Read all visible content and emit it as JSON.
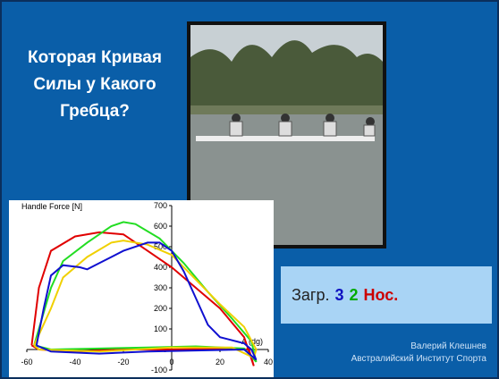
{
  "slide": {
    "title_lines": [
      "Которая Кривая",
      "Силы у Какого",
      "Гребца?"
    ],
    "answer": {
      "label": "Загр.",
      "sequence": [
        "3",
        "2",
        "Нос."
      ]
    },
    "author": "Валерий Клешнев",
    "organization": "Австралийский Институт Спорта"
  },
  "chart_data": {
    "type": "line",
    "y_label": "Handle Force [N]",
    "x_label": "A (dg)",
    "xlim": [
      -60,
      40
    ],
    "ylim": [
      -100,
      700
    ],
    "xticks": [
      -60,
      -40,
      -20,
      0,
      20,
      40
    ],
    "yticks": [
      -100,
      0,
      100,
      200,
      300,
      400,
      500,
      600,
      700
    ],
    "series": [
      {
        "color": "#e00000",
        "x": [
          -58,
          -55,
          -50,
          -40,
          -30,
          -20,
          -10,
          0,
          10,
          20,
          30,
          34,
          32,
          20,
          0,
          -20,
          -40,
          -55,
          -58
        ],
        "values": [
          20,
          300,
          480,
          550,
          570,
          560,
          480,
          400,
          300,
          200,
          60,
          -80,
          0,
          5,
          0,
          0,
          -10,
          0,
          20
        ]
      },
      {
        "color": "#22dd22",
        "x": [
          -57,
          -50,
          -45,
          -35,
          -25,
          -20,
          -15,
          -5,
          5,
          15,
          25,
          33,
          35,
          30,
          10,
          -10,
          -30,
          -50,
          -57
        ],
        "values": [
          20,
          300,
          430,
          520,
          600,
          620,
          610,
          540,
          420,
          280,
          150,
          40,
          -60,
          5,
          15,
          10,
          5,
          0,
          20
        ]
      },
      {
        "color": "#f0d000",
        "x": [
          -57,
          -50,
          -45,
          -35,
          -25,
          -20,
          -10,
          0,
          10,
          20,
          30,
          35,
          34,
          25,
          0,
          -30,
          -55,
          -57
        ],
        "values": [
          20,
          200,
          350,
          450,
          520,
          530,
          510,
          460,
          340,
          220,
          110,
          0,
          -40,
          10,
          10,
          -10,
          0,
          20
        ]
      },
      {
        "color": "#1010d0",
        "x": [
          -56,
          -53,
          -50,
          -45,
          -38,
          -35,
          -30,
          -20,
          -10,
          -5,
          0,
          5,
          10,
          15,
          20,
          30,
          33,
          35,
          30,
          10,
          -10,
          -30,
          -50,
          -56
        ],
        "values": [
          20,
          200,
          360,
          410,
          400,
          390,
          420,
          480,
          520,
          520,
          480,
          380,
          250,
          120,
          60,
          30,
          0,
          -50,
          0,
          -5,
          -10,
          -20,
          -10,
          20
        ]
      }
    ]
  }
}
